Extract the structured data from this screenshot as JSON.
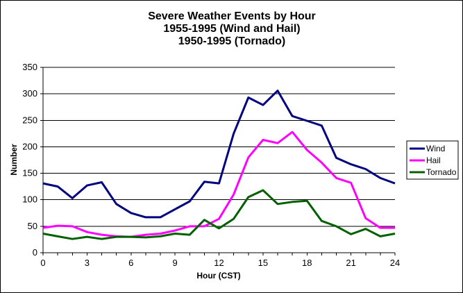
{
  "chart_data": {
    "type": "line",
    "title_lines": [
      "Severe Weather Events by Hour",
      "1955-1995 (Wind and Hail)",
      "1950-1995 (Tornado)"
    ],
    "xlabel": "Hour (CST)",
    "ylabel": "Number",
    "xlim": [
      0,
      24
    ],
    "ylim": [
      0,
      350
    ],
    "x_ticks": [
      0,
      3,
      6,
      9,
      12,
      15,
      18,
      21,
      24
    ],
    "y_ticks": [
      0,
      50,
      100,
      150,
      200,
      250,
      300,
      350
    ],
    "grid": "horizontal",
    "legend_position": "right",
    "x": [
      0,
      1,
      2,
      3,
      4,
      5,
      6,
      7,
      8,
      9,
      10,
      11,
      12,
      13,
      14,
      15,
      16,
      17,
      18,
      19,
      20,
      21,
      22,
      23,
      24
    ],
    "series": [
      {
        "name": "Wind",
        "color": "#000080",
        "values": [
          131,
          125,
          103,
          127,
          133,
          92,
          75,
          67,
          67,
          82,
          97,
          134,
          131,
          225,
          293,
          279,
          306,
          258,
          249,
          240,
          179,
          167,
          158,
          141,
          131
        ]
      },
      {
        "name": "Hail",
        "color": "#ff00ff",
        "values": [
          47,
          51,
          50,
          39,
          34,
          31,
          30,
          34,
          36,
          42,
          50,
          50,
          64,
          110,
          180,
          213,
          207,
          228,
          194,
          170,
          141,
          132,
          65,
          47,
          47
        ]
      },
      {
        "name": "Tornado",
        "color": "#006000",
        "values": [
          36,
          31,
          26,
          30,
          26,
          30,
          30,
          29,
          31,
          36,
          34,
          62,
          46,
          64,
          105,
          118,
          92,
          96,
          98,
          60,
          50,
          35,
          45,
          31,
          36
        ]
      }
    ]
  }
}
